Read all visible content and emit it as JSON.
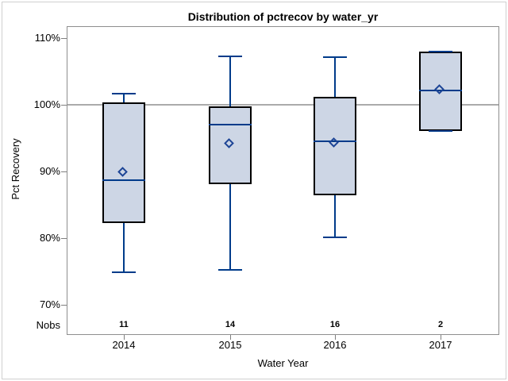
{
  "figure": {
    "title": "Distribution of pctrecov by water_yr",
    "y_axis_label": "Pct Recovery",
    "x_axis_label": "Water Year",
    "nobs_label": "Nobs"
  },
  "chart_data": {
    "type": "boxplot",
    "title": "Distribution of pctrecov by water_yr",
    "xlabel": "Water Year",
    "ylabel": "Pct Recovery",
    "categories": [
      "2014",
      "2015",
      "2016",
      "2017"
    ],
    "nobs": [
      "11",
      "14",
      "16",
      "2"
    ],
    "y_ticks": [
      {
        "value": 70,
        "label": "70%"
      },
      {
        "value": 80,
        "label": "80%"
      },
      {
        "value": 90,
        "label": "90%"
      },
      {
        "value": 100,
        "label": "100%"
      },
      {
        "value": 110,
        "label": "110%"
      }
    ],
    "ylim": [
      65.5,
      111.8
    ],
    "reference_line_y": 100,
    "grid": "reference-line-at-100-only",
    "legend": "none",
    "series": [
      {
        "category": "2014",
        "n": 11,
        "whisker_low": 74.8,
        "q1": 82.2,
        "median": 88.6,
        "mean": 89.7,
        "q3": 100.3,
        "whisker_high": 101.6
      },
      {
        "category": "2015",
        "n": 14,
        "whisker_low": 75.2,
        "q1": 88.0,
        "median": 97.0,
        "mean": 94.0,
        "q3": 99.7,
        "whisker_high": 107.2
      },
      {
        "category": "2016",
        "n": 16,
        "whisker_low": 80.1,
        "q1": 86.4,
        "median": 94.5,
        "mean": 94.1,
        "q3": 101.2,
        "whisker_high": 107.1
      },
      {
        "category": "2017",
        "n": 2,
        "whisker_low": 96.0,
        "q1": 96.0,
        "median": 102.1,
        "mean": 102.1,
        "q3": 108.0,
        "whisker_high": 108.0
      }
    ],
    "colors": {
      "box_fill": "#cdd6e5",
      "box_border": "#000000",
      "whisker": "#003b8a",
      "median": "#003b8a",
      "mean_marker": "#1d4596",
      "reference_line": "#ababab",
      "frame_border": "#8e8e8e",
      "outer_border": "#d0d0d0",
      "tick": "#7f7f7f",
      "text": "#000000",
      "background": "#ffffff"
    }
  }
}
